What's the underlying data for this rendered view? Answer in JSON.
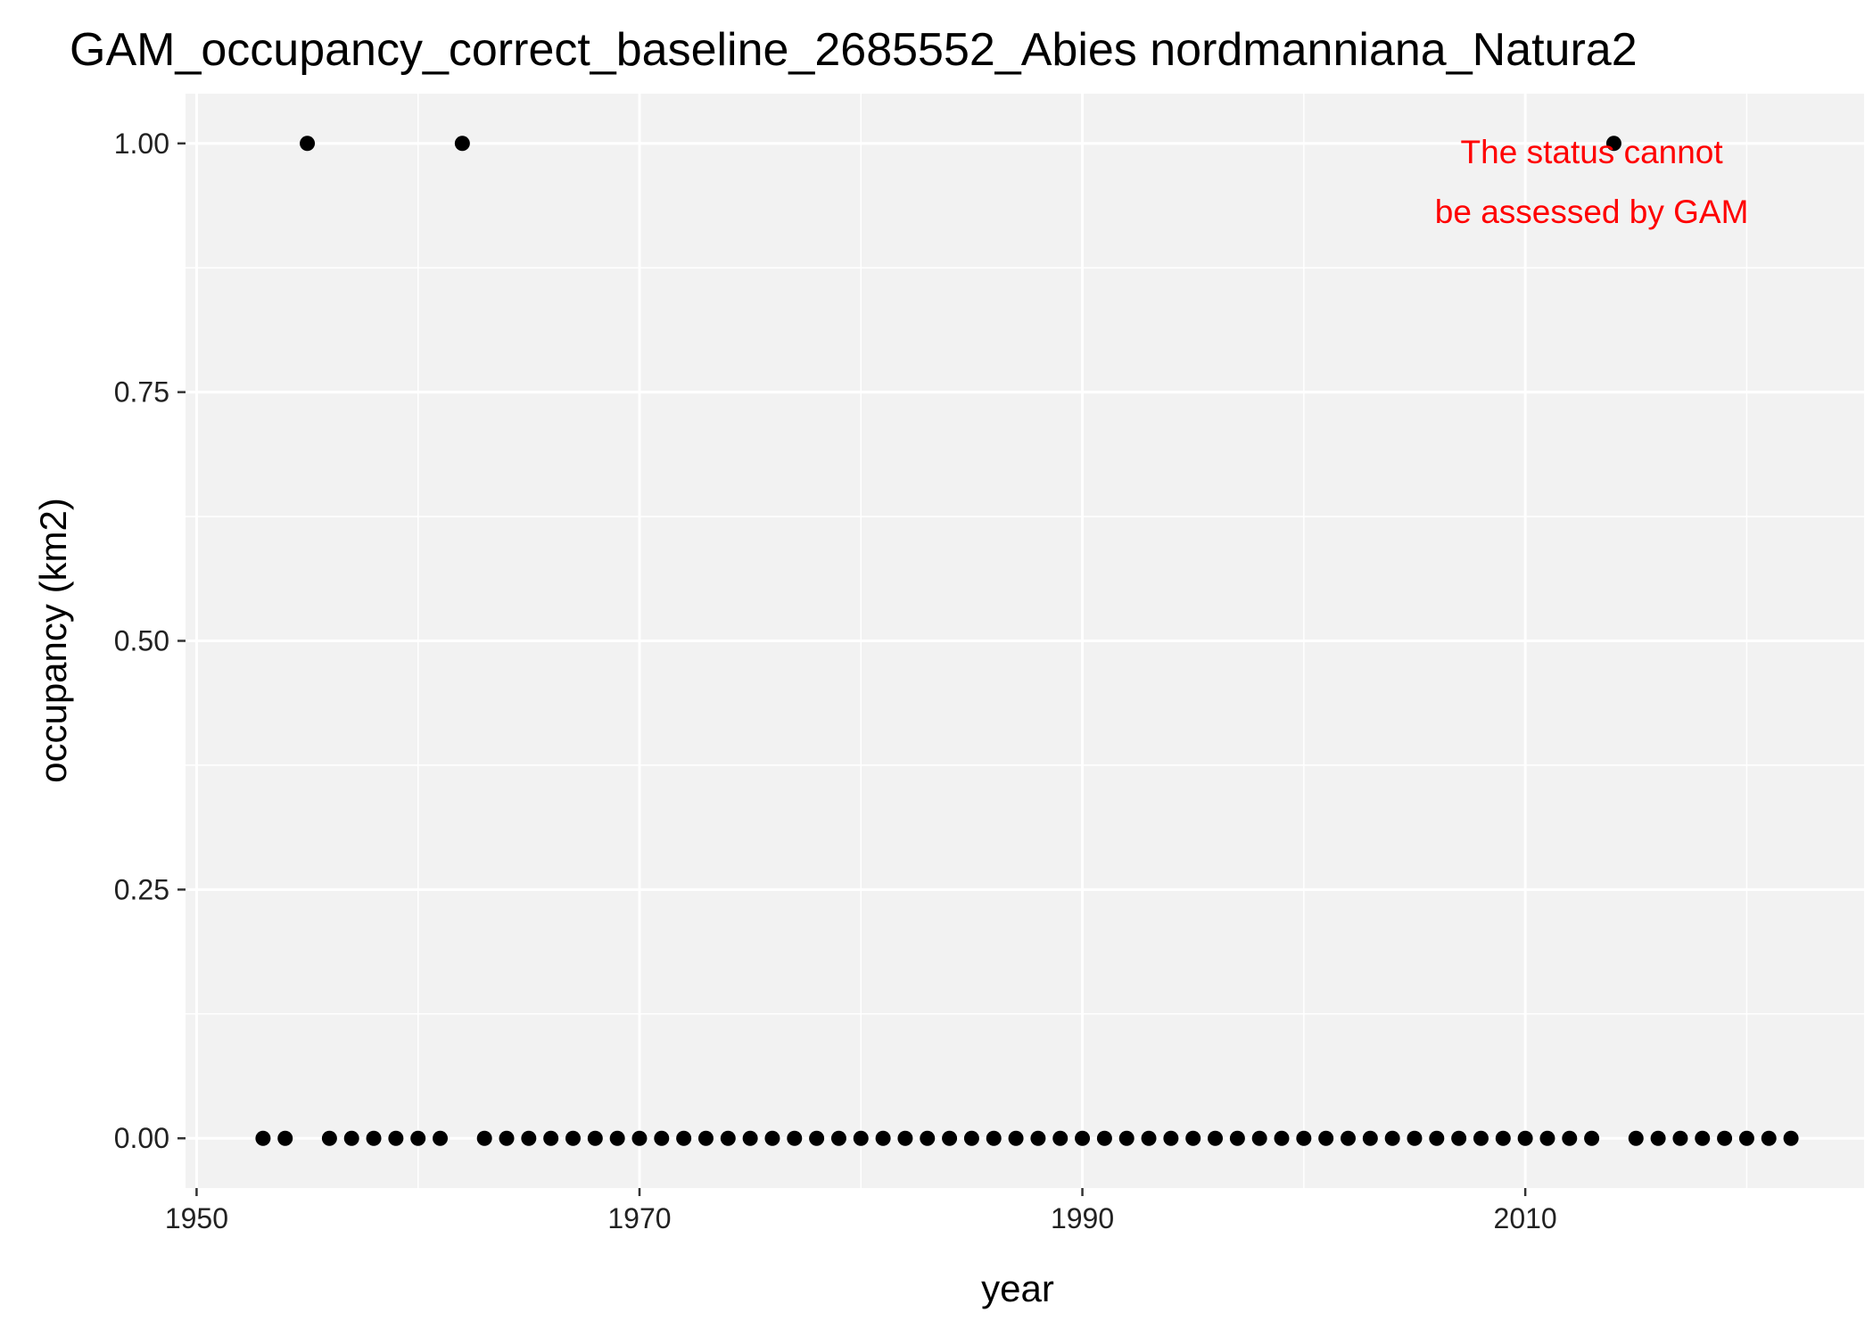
{
  "chart_data": {
    "type": "scatter",
    "title": "GAM_occupancy_correct_baseline_2685552_Abies nordmanniana_Natura2",
    "xlabel": "year",
    "ylabel": "occupancy (km2)",
    "xlim": [
      1949.5,
      2025.3
    ],
    "ylim": [
      -0.05,
      1.05
    ],
    "x_ticks": [
      1950,
      1970,
      1990,
      2010
    ],
    "x_tick_labels": [
      "1950",
      "1970",
      "1990",
      "2010"
    ],
    "y_ticks": [
      0,
      0.25,
      0.5,
      0.75,
      1.0
    ],
    "y_tick_labels": [
      "0.00",
      "0.25",
      "0.50",
      "0.75",
      "1.00"
    ],
    "grid": true,
    "legend": "none",
    "background": "#f2f2f2",
    "gridline_color": "#ffffff",
    "point_color": "#000000",
    "annotation": {
      "lines": [
        "The status cannot",
        "be assessed by GAM"
      ],
      "color": "#ff0000",
      "x": 2013,
      "y": [
        0.98,
        0.92
      ]
    },
    "points": [
      {
        "x": 1953,
        "y": 0
      },
      {
        "x": 1954,
        "y": 0
      },
      {
        "x": 1955,
        "y": 1
      },
      {
        "x": 1956,
        "y": 0
      },
      {
        "x": 1957,
        "y": 0
      },
      {
        "x": 1958,
        "y": 0
      },
      {
        "x": 1959,
        "y": 0
      },
      {
        "x": 1960,
        "y": 0
      },
      {
        "x": 1961,
        "y": 0
      },
      {
        "x": 1962,
        "y": 1
      },
      {
        "x": 1963,
        "y": 0
      },
      {
        "x": 1964,
        "y": 0
      },
      {
        "x": 1965,
        "y": 0
      },
      {
        "x": 1966,
        "y": 0
      },
      {
        "x": 1967,
        "y": 0
      },
      {
        "x": 1968,
        "y": 0
      },
      {
        "x": 1969,
        "y": 0
      },
      {
        "x": 1970,
        "y": 0
      },
      {
        "x": 1971,
        "y": 0
      },
      {
        "x": 1972,
        "y": 0
      },
      {
        "x": 1973,
        "y": 0
      },
      {
        "x": 1974,
        "y": 0
      },
      {
        "x": 1975,
        "y": 0
      },
      {
        "x": 1976,
        "y": 0
      },
      {
        "x": 1977,
        "y": 0
      },
      {
        "x": 1978,
        "y": 0
      },
      {
        "x": 1979,
        "y": 0
      },
      {
        "x": 1980,
        "y": 0
      },
      {
        "x": 1981,
        "y": 0
      },
      {
        "x": 1982,
        "y": 0
      },
      {
        "x": 1983,
        "y": 0
      },
      {
        "x": 1984,
        "y": 0
      },
      {
        "x": 1985,
        "y": 0
      },
      {
        "x": 1986,
        "y": 0
      },
      {
        "x": 1987,
        "y": 0
      },
      {
        "x": 1988,
        "y": 0
      },
      {
        "x": 1989,
        "y": 0
      },
      {
        "x": 1990,
        "y": 0
      },
      {
        "x": 1991,
        "y": 0
      },
      {
        "x": 1992,
        "y": 0
      },
      {
        "x": 1993,
        "y": 0
      },
      {
        "x": 1994,
        "y": 0
      },
      {
        "x": 1995,
        "y": 0
      },
      {
        "x": 1996,
        "y": 0
      },
      {
        "x": 1997,
        "y": 0
      },
      {
        "x": 1998,
        "y": 0
      },
      {
        "x": 1999,
        "y": 0
      },
      {
        "x": 2000,
        "y": 0
      },
      {
        "x": 2001,
        "y": 0
      },
      {
        "x": 2002,
        "y": 0
      },
      {
        "x": 2003,
        "y": 0
      },
      {
        "x": 2004,
        "y": 0
      },
      {
        "x": 2005,
        "y": 0
      },
      {
        "x": 2006,
        "y": 0
      },
      {
        "x": 2007,
        "y": 0
      },
      {
        "x": 2008,
        "y": 0
      },
      {
        "x": 2009,
        "y": 0
      },
      {
        "x": 2010,
        "y": 0
      },
      {
        "x": 2011,
        "y": 0
      },
      {
        "x": 2012,
        "y": 0
      },
      {
        "x": 2013,
        "y": 0
      },
      {
        "x": 2014,
        "y": 1
      },
      {
        "x": 2015,
        "y": 0
      },
      {
        "x": 2016,
        "y": 0
      },
      {
        "x": 2017,
        "y": 0
      },
      {
        "x": 2018,
        "y": 0
      },
      {
        "x": 2019,
        "y": 0
      },
      {
        "x": 2020,
        "y": 0
      },
      {
        "x": 2021,
        "y": 0
      },
      {
        "x": 2022,
        "y": 0
      }
    ]
  }
}
